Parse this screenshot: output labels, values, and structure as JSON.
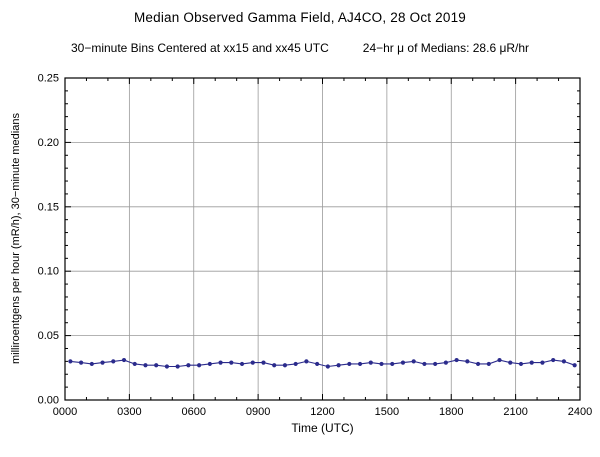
{
  "header": {
    "title": "Median Observed Gamma Field, AJ4CO, 28 Oct 2019",
    "subtitle_left": "30−minute Bins Centered at xx15 and xx45 UTC",
    "subtitle_right": "24−hr μ of Medians: 28.6 μR/hr"
  },
  "chart_data": {
    "type": "line",
    "title": "Median Observed Gamma Field, AJ4CO, 28 Oct 2019",
    "xlabel": "Time (UTC)",
    "ylabel": "milliroentgens per hour (mR/h), 30−minute medians",
    "xlim_hours": [
      0,
      24
    ],
    "ylim": [
      0,
      0.25
    ],
    "grid": true,
    "legend": "none",
    "line_color": "#2b2b8c",
    "marker_color": "#2b2b8c",
    "grid_color": "#9a9a9a",
    "axis_color": "#000000",
    "x_tick_hours": [
      0,
      3,
      6,
      9,
      12,
      15,
      18,
      21,
      24
    ],
    "x_tick_labels": [
      "0000",
      "0300",
      "0600",
      "0900",
      "1200",
      "1500",
      "1800",
      "2100",
      "2400"
    ],
    "x_minor_step_hours": 1,
    "y_tick_values": [
      0.0,
      0.05,
      0.1,
      0.15,
      0.2,
      0.25
    ],
    "y_tick_labels": [
      "0.00",
      "0.05",
      "0.10",
      "0.15",
      "0.20",
      "0.25"
    ],
    "y_minor_step": 0.01,
    "series_name": "30-minute median gamma field (mR/h)",
    "first_bin_center_hour": 0.25,
    "bin_step_hours": 0.5,
    "mean_of_medians_uR_hr": 28.6,
    "values": [
      0.03,
      0.029,
      0.028,
      0.029,
      0.03,
      0.031,
      0.028,
      0.027,
      0.027,
      0.026,
      0.026,
      0.027,
      0.027,
      0.028,
      0.029,
      0.029,
      0.028,
      0.029,
      0.029,
      0.027,
      0.027,
      0.028,
      0.03,
      0.028,
      0.026,
      0.027,
      0.028,
      0.028,
      0.029,
      0.028,
      0.028,
      0.029,
      0.03,
      0.028,
      0.028,
      0.029,
      0.031,
      0.03,
      0.028,
      0.028,
      0.031,
      0.029,
      0.028,
      0.029,
      0.029,
      0.031,
      0.03,
      0.027
    ]
  }
}
